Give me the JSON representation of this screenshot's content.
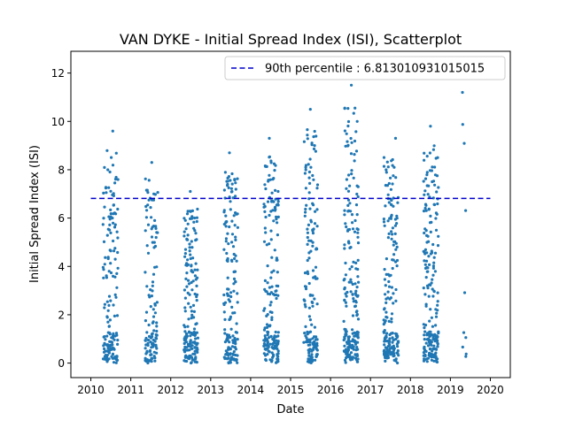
{
  "chart_data": {
    "type": "scatter",
    "title": "VAN DYKE - Initial Spread Index (ISI), Scatterplot",
    "xlabel": "Date",
    "ylabel": "Initial Spread Index (ISI)",
    "xlim": [
      2009.5,
      2020.5
    ],
    "ylim": [
      -0.6,
      12.9
    ],
    "x_ticks": [
      2010,
      2011,
      2012,
      2013,
      2014,
      2015,
      2016,
      2017,
      2018,
      2019,
      2020
    ],
    "x_tick_labels": [
      "2010",
      "2011",
      "2012",
      "2013",
      "2014",
      "2015",
      "2016",
      "2017",
      "2018",
      "2019",
      "2020"
    ],
    "y_ticks": [
      0,
      2,
      4,
      6,
      8,
      10,
      12
    ],
    "y_tick_labels": [
      "0",
      "2",
      "4",
      "6",
      "8",
      "10",
      "12"
    ],
    "grid": false,
    "legend_position": "top-right",
    "series": [
      {
        "name": "",
        "color": "#1f77b4",
        "seasons": [
          {
            "year": 2010,
            "start": 2010.3,
            "end": 2010.68,
            "max": 9.6,
            "count": 160
          },
          {
            "year": 2011,
            "start": 2011.36,
            "end": 2011.68,
            "max": 8.3,
            "count": 120
          },
          {
            "year": 2012,
            "start": 2012.33,
            "end": 2012.68,
            "max": 7.1,
            "count": 180
          },
          {
            "year": 2013,
            "start": 2013.33,
            "end": 2013.68,
            "max": 8.7,
            "count": 170
          },
          {
            "year": 2014,
            "start": 2014.33,
            "end": 2014.7,
            "max": 9.3,
            "count": 190
          },
          {
            "year": 2015,
            "start": 2015.33,
            "end": 2015.68,
            "max": 10.5,
            "count": 160
          },
          {
            "year": 2016,
            "start": 2016.33,
            "end": 2016.7,
            "max": 11.5,
            "count": 210
          },
          {
            "year": 2017,
            "start": 2017.33,
            "end": 2017.7,
            "max": 9.3,
            "count": 190
          },
          {
            "year": 2018,
            "start": 2018.33,
            "end": 2018.7,
            "max": 9.8,
            "count": 210
          },
          {
            "year": 2019,
            "start": 2019.3,
            "end": 2019.4,
            "max": 11.2,
            "count": 10
          }
        ]
      },
      {
        "name": "90th percentile : 6.813010931015015",
        "type": "hline",
        "y": 6.813010931015015,
        "x_range": [
          2010,
          2020
        ],
        "color": "#0000cc",
        "style": "dashed"
      }
    ]
  }
}
